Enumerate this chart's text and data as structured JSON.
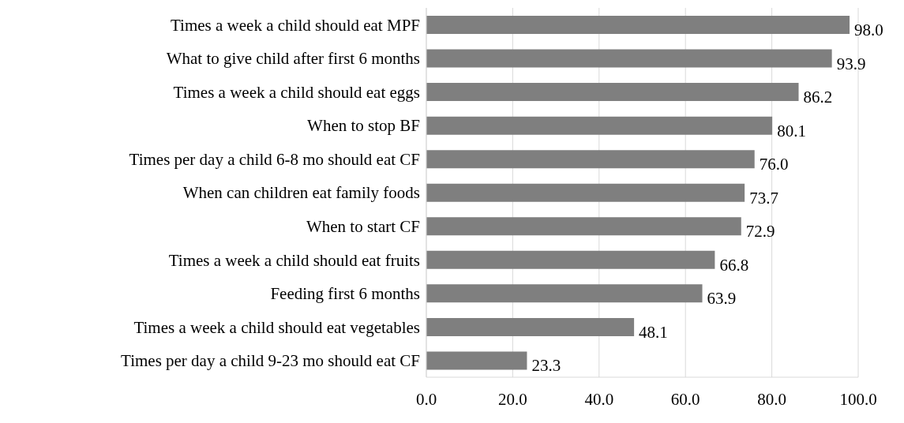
{
  "chart_data": {
    "type": "bar",
    "orientation": "horizontal",
    "categories": [
      "Times a week a child should eat MPF",
      "What to give child after first 6 months",
      "Times a week a child should eat eggs",
      "When to stop BF",
      "Times per day a child 6-8 mo should eat CF",
      "When can children eat family foods",
      "When to start CF",
      "Times a week a child should eat fruits",
      "Feeding first 6 months",
      "Times a week a child should eat vegetables",
      "Times per day a child 9-23 mo should eat CF"
    ],
    "values": [
      98.0,
      93.9,
      86.2,
      80.1,
      76.0,
      73.7,
      72.9,
      66.8,
      63.9,
      48.1,
      23.3
    ],
    "value_labels": [
      "98.0",
      "93.9",
      "86.2",
      "80.1",
      "76.0",
      "73.7",
      "72.9",
      "66.8",
      "63.9",
      "48.1",
      "23.3"
    ],
    "color": "#7f7f7f",
    "xlim": [
      0,
      100
    ],
    "xticks": [
      {
        "value": 0,
        "label": "0.0"
      },
      {
        "value": 20,
        "label": "20.0"
      },
      {
        "value": 40,
        "label": "40.0"
      },
      {
        "value": 60,
        "label": "60.0"
      },
      {
        "value": 80,
        "label": "80.0"
      },
      {
        "value": 100,
        "label": "100.0"
      }
    ],
    "grid": "x"
  }
}
